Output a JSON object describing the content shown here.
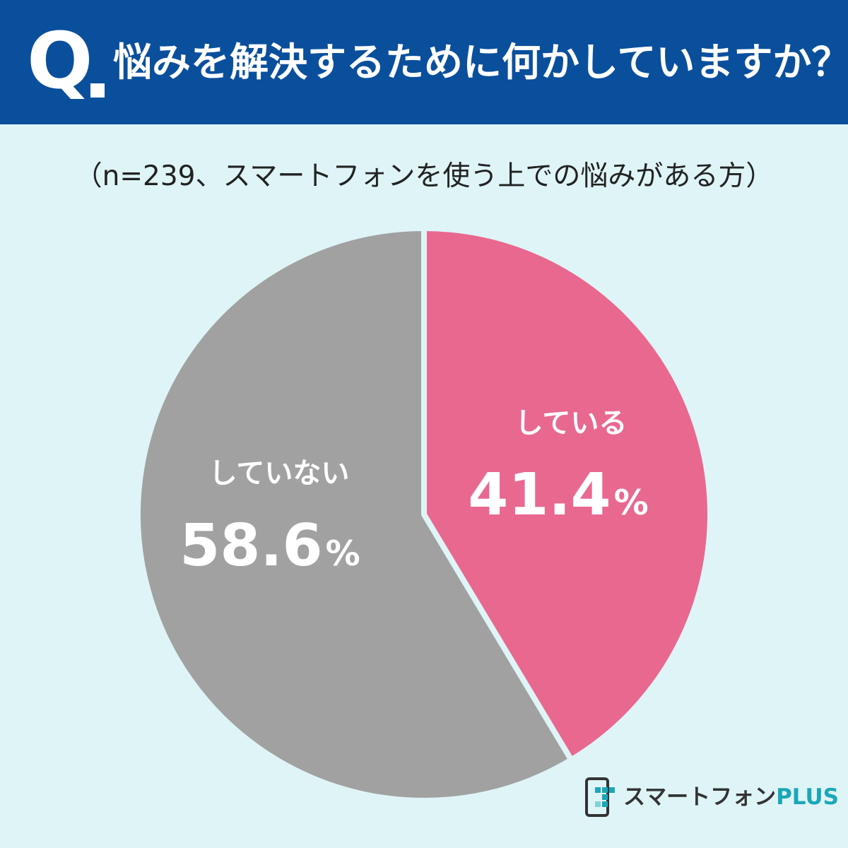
{
  "header": {
    "q_mark": "Q",
    "question": "悩みを解決するために何かしていますか？"
  },
  "sample_note": "（n=239、スマートフォンを使う上での悩みがある方）",
  "chart_data": {
    "type": "pie",
    "title": "悩みを解決するために何かしていますか？",
    "subtitle": "（n=239、スマートフォンを使う上での悩みがある方）",
    "categories": [
      "している",
      "していない"
    ],
    "values": [
      41.4,
      58.6
    ],
    "unit": "%",
    "colors": [
      "#e9688f",
      "#a1a1a1"
    ],
    "start": "top",
    "direction": "clockwise"
  },
  "logo": {
    "main": "スマートフォン",
    "accent": "PLUS",
    "icon": "smartphone-logo-icon"
  }
}
